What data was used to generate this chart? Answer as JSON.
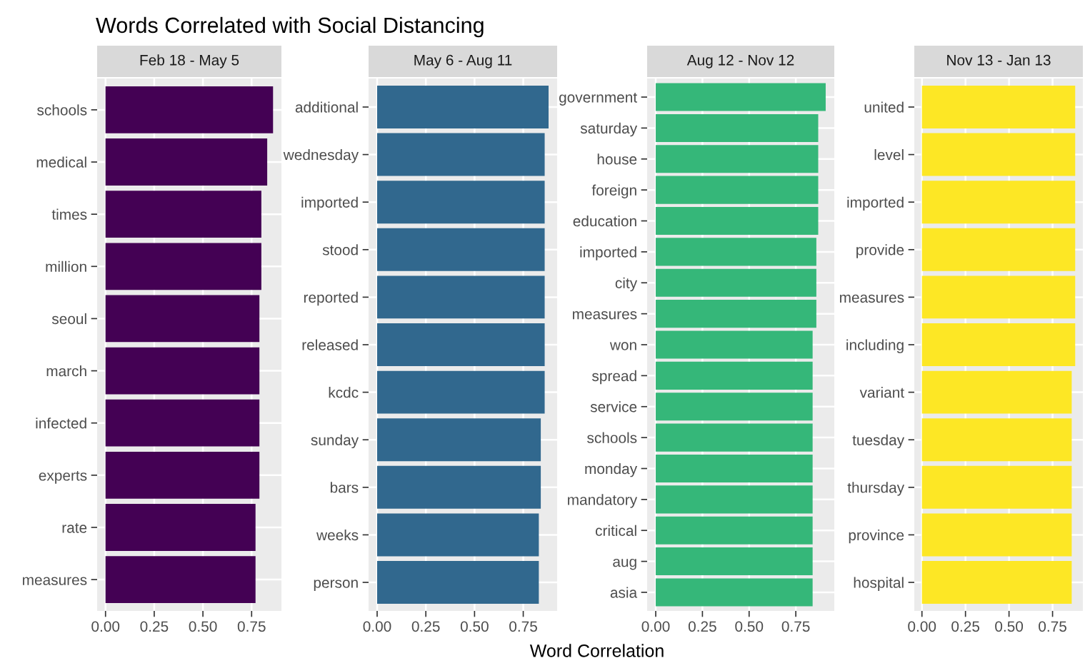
{
  "chart_data": [
    {
      "type": "bar",
      "orientation": "horizontal",
      "title": "Words Correlated with Social Distancing",
      "subtitle": "Feb 18 - May 5",
      "color": "#440154",
      "grid": true,
      "categories": [
        "schools",
        "medical",
        "times",
        "million",
        "seoul",
        "march",
        "infected",
        "experts",
        "rate",
        "measures"
      ],
      "values": [
        0.86,
        0.83,
        0.8,
        0.8,
        0.79,
        0.79,
        0.79,
        0.79,
        0.77,
        0.77
      ],
      "xlim": [
        -0.043,
        0.903
      ],
      "xticks": [
        {
          "value": 0,
          "label": "0.00"
        },
        {
          "value": 0.25,
          "label": "0.25"
        },
        {
          "value": 0.5,
          "label": "0.50"
        },
        {
          "value": 0.75,
          "label": "0.75"
        }
      ]
    },
    {
      "type": "bar",
      "orientation": "horizontal",
      "subtitle": "May 6 - Aug 11",
      "xlabel": "Word Correlation",
      "color": "#31688e",
      "grid": true,
      "categories": [
        "additional",
        "wednesday",
        "imported",
        "stood",
        "reported",
        "released",
        "kcdc",
        "sunday",
        "bars",
        "weeks",
        "person"
      ],
      "values": [
        0.88,
        0.86,
        0.86,
        0.86,
        0.86,
        0.86,
        0.86,
        0.84,
        0.84,
        0.83,
        0.83
      ],
      "xlim": [
        -0.044,
        0.924
      ],
      "xticks": [
        {
          "value": 0,
          "label": "0.00"
        },
        {
          "value": 0.25,
          "label": "0.25"
        },
        {
          "value": 0.5,
          "label": "0.50"
        },
        {
          "value": 0.75,
          "label": "0.75"
        }
      ]
    },
    {
      "type": "bar",
      "orientation": "horizontal",
      "subtitle": "Aug 12 - Nov 12",
      "color": "#35b779",
      "grid": true,
      "categories": [
        "government",
        "saturday",
        "house",
        "foreign",
        "education",
        "imported",
        "city",
        "measures",
        "won",
        "spread",
        "service",
        "schools",
        "monday",
        "mandatory",
        "critical",
        "aug",
        "asia"
      ],
      "values": [
        0.91,
        0.87,
        0.87,
        0.87,
        0.87,
        0.86,
        0.86,
        0.86,
        0.84,
        0.84,
        0.84,
        0.84,
        0.84,
        0.84,
        0.84,
        0.84,
        0.84
      ],
      "xlim": [
        -0.046,
        0.956
      ],
      "xticks": [
        {
          "value": 0,
          "label": "0.00"
        },
        {
          "value": 0.25,
          "label": "0.25"
        },
        {
          "value": 0.5,
          "label": "0.50"
        },
        {
          "value": 0.75,
          "label": "0.75"
        }
      ]
    },
    {
      "type": "bar",
      "orientation": "horizontal",
      "subtitle": "Nov 13 - Jan 13",
      "color": "#fde725",
      "grid": true,
      "categories": [
        "united",
        "level",
        "imported",
        "provide",
        "measures",
        "including",
        "variant",
        "tuesday",
        "thursday",
        "province",
        "hospital"
      ],
      "values": [
        0.88,
        0.88,
        0.88,
        0.88,
        0.88,
        0.88,
        0.86,
        0.86,
        0.86,
        0.86,
        0.86
      ],
      "xlim": [
        -0.044,
        0.924
      ],
      "xticks": [
        {
          "value": 0,
          "label": "0.00"
        },
        {
          "value": 0.25,
          "label": "0.25"
        },
        {
          "value": 0.5,
          "label": "0.50"
        },
        {
          "value": 0.75,
          "label": "0.75"
        }
      ]
    }
  ]
}
